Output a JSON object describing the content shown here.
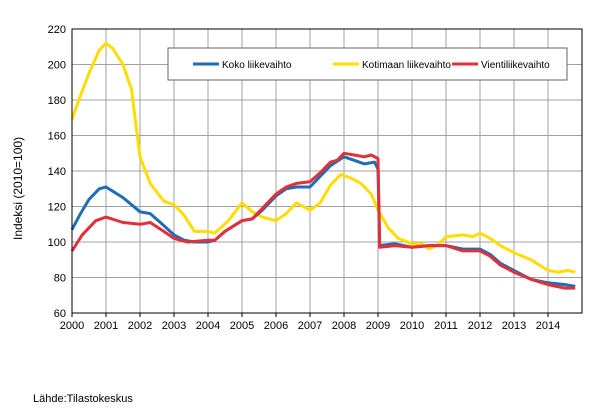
{
  "chart_data": {
    "type": "line",
    "title": "",
    "xlabel": "",
    "ylabel": "Indeksi (2010=100)",
    "source": "Lähde:Tilastokeskus",
    "xlim": [
      2000,
      2015
    ],
    "ylim": [
      60,
      220
    ],
    "yticks": [
      60,
      80,
      100,
      120,
      140,
      160,
      180,
      200,
      220
    ],
    "xticks": [
      "2000",
      "2001",
      "2002",
      "2003",
      "2004",
      "2005",
      "2006",
      "2007",
      "2008",
      "2009",
      "2010",
      "2011",
      "2012",
      "2013",
      "2014"
    ],
    "grid": true,
    "legend": "top-right",
    "series": [
      {
        "name": "Koko liikevaihto",
        "color": "#1f6db5",
        "points": [
          [
            2000,
            107
          ],
          [
            2000.25,
            116
          ],
          [
            2000.5,
            124
          ],
          [
            2000.8,
            130
          ],
          [
            2001,
            131
          ],
          [
            2001.25,
            128
          ],
          [
            2001.5,
            125
          ],
          [
            2001.75,
            121
          ],
          [
            2002,
            117
          ],
          [
            2002.3,
            116
          ],
          [
            2002.6,
            111
          ],
          [
            2003,
            104
          ],
          [
            2003.3,
            101
          ],
          [
            2003.6,
            100
          ],
          [
            2004,
            100
          ],
          [
            2004.2,
            101
          ],
          [
            2004.5,
            106
          ],
          [
            2005,
            112
          ],
          [
            2005.3,
            113
          ],
          [
            2005.6,
            118
          ],
          [
            2006,
            126
          ],
          [
            2006.3,
            130
          ],
          [
            2006.6,
            131
          ],
          [
            2007,
            131
          ],
          [
            2007.3,
            137
          ],
          [
            2007.6,
            143
          ],
          [
            2008,
            148
          ],
          [
            2008.3,
            146
          ],
          [
            2008.6,
            144
          ],
          [
            2008.9,
            145
          ],
          [
            2009,
            141
          ],
          [
            2009.05,
            98
          ],
          [
            2009.5,
            99
          ],
          [
            2010,
            97
          ],
          [
            2010.5,
            98
          ],
          [
            2011,
            98
          ],
          [
            2011.5,
            96
          ],
          [
            2012,
            96
          ],
          [
            2012.3,
            93
          ],
          [
            2012.6,
            88
          ],
          [
            2013,
            84
          ],
          [
            2013.5,
            79
          ],
          [
            2014,
            77
          ],
          [
            2014.5,
            76
          ],
          [
            2014.8,
            75
          ]
        ]
      },
      {
        "name": "Kotimaan liikevaihto",
        "color": "#ffdd00",
        "points": [
          [
            2000,
            169
          ],
          [
            2000.2,
            180
          ],
          [
            2000.5,
            195
          ],
          [
            2000.8,
            208
          ],
          [
            2001,
            212
          ],
          [
            2001.2,
            209
          ],
          [
            2001.5,
            200
          ],
          [
            2001.75,
            186
          ],
          [
            2002,
            148
          ],
          [
            2002.3,
            133
          ],
          [
            2002.7,
            123
          ],
          [
            2003,
            121
          ],
          [
            2003.3,
            115
          ],
          [
            2003.6,
            106
          ],
          [
            2004,
            106
          ],
          [
            2004.2,
            105
          ],
          [
            2004.6,
            112
          ],
          [
            2005,
            122
          ],
          [
            2005.3,
            117
          ],
          [
            2005.6,
            114
          ],
          [
            2006,
            112
          ],
          [
            2006.3,
            116
          ],
          [
            2006.6,
            122
          ],
          [
            2007,
            118
          ],
          [
            2007.3,
            122
          ],
          [
            2007.6,
            132
          ],
          [
            2007.9,
            138
          ],
          [
            2008.2,
            136
          ],
          [
            2008.5,
            133
          ],
          [
            2008.8,
            127
          ],
          [
            2009,
            118
          ],
          [
            2009.3,
            108
          ],
          [
            2009.6,
            102
          ],
          [
            2010,
            99
          ],
          [
            2010.3,
            99
          ],
          [
            2010.5,
            96
          ],
          [
            2010.8,
            99
          ],
          [
            2011,
            103
          ],
          [
            2011.5,
            104
          ],
          [
            2011.8,
            103
          ],
          [
            2012,
            105
          ],
          [
            2012.3,
            102
          ],
          [
            2012.6,
            98
          ],
          [
            2013,
            94
          ],
          [
            2013.5,
            90
          ],
          [
            2014,
            84
          ],
          [
            2014.3,
            83
          ],
          [
            2014.6,
            84
          ],
          [
            2014.8,
            83
          ]
        ]
      },
      {
        "name": "Vientiliikevaihto",
        "color": "#e0313a",
        "points": [
          [
            2000,
            95
          ],
          [
            2000.3,
            104
          ],
          [
            2000.7,
            112
          ],
          [
            2001,
            114
          ],
          [
            2001.5,
            111
          ],
          [
            2002,
            110
          ],
          [
            2002.3,
            111
          ],
          [
            2002.7,
            106
          ],
          [
            2003,
            102
          ],
          [
            2003.4,
            100
          ],
          [
            2004,
            101
          ],
          [
            2004.2,
            101
          ],
          [
            2004.5,
            106
          ],
          [
            2005,
            112
          ],
          [
            2005.3,
            113
          ],
          [
            2005.6,
            119
          ],
          [
            2006,
            127
          ],
          [
            2006.3,
            131
          ],
          [
            2006.6,
            133
          ],
          [
            2007,
            134
          ],
          [
            2007.3,
            139
          ],
          [
            2007.6,
            145
          ],
          [
            2007.8,
            146
          ],
          [
            2008,
            150
          ],
          [
            2008.3,
            149
          ],
          [
            2008.6,
            148
          ],
          [
            2008.8,
            149
          ],
          [
            2009,
            147
          ],
          [
            2009.05,
            97
          ],
          [
            2009.5,
            98
          ],
          [
            2010,
            97
          ],
          [
            2010.5,
            98
          ],
          [
            2011,
            98
          ],
          [
            2011.5,
            95
          ],
          [
            2012,
            95
          ],
          [
            2012.3,
            92
          ],
          [
            2012.6,
            87
          ],
          [
            2013,
            83
          ],
          [
            2013.5,
            79
          ],
          [
            2014,
            76
          ],
          [
            2014.5,
            74
          ],
          [
            2014.8,
            74
          ]
        ]
      }
    ]
  }
}
